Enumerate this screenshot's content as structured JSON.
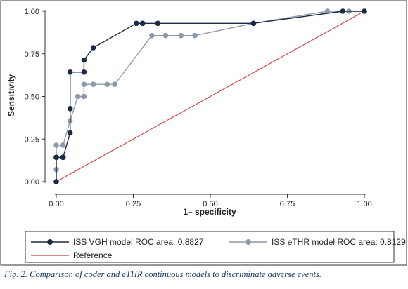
{
  "chart_data": {
    "type": "line",
    "xlabel": "1– specificity",
    "ylabel": "Sensitivity",
    "xlim": [
      0,
      1
    ],
    "ylim": [
      0,
      1
    ],
    "xticks": [
      "0.00",
      "0.25",
      "0.50",
      "0.75",
      "1.00"
    ],
    "yticks": [
      "0.00",
      "0.25",
      "0.50",
      "0.75",
      "1.00"
    ],
    "grid": false,
    "legend_position": "bottom",
    "series": [
      {
        "name": "ISS VGH model ROC area: 0.8827",
        "color": "#1c2b45",
        "marker": "circle",
        "x": [
          0,
          0,
          0.022,
          0.022,
          0.045,
          0.045,
          0.045,
          0.09,
          0.09,
          0.12,
          0.26,
          0.28,
          0.33,
          0.64,
          0.93,
          1.0
        ],
        "y": [
          0,
          0.143,
          0.143,
          0.143,
          0.286,
          0.429,
          0.643,
          0.643,
          0.714,
          0.786,
          0.929,
          0.929,
          0.929,
          0.929,
          1.0,
          1.0
        ]
      },
      {
        "name": "ISS eTHR model ROC area: 0.8129",
        "color": "#8e9aab",
        "marker": "circle",
        "x": [
          0,
          0,
          0,
          0,
          0.022,
          0.045,
          0.07,
          0.09,
          0.09,
          0.12,
          0.165,
          0.19,
          0.31,
          0.355,
          0.405,
          0.45,
          0.64,
          0.88,
          0.95,
          1.0
        ],
        "y": [
          0,
          0.071,
          0.143,
          0.214,
          0.214,
          0.357,
          0.5,
          0.5,
          0.571,
          0.571,
          0.571,
          0.571,
          0.857,
          0.857,
          0.857,
          0.857,
          0.929,
          1.0,
          1.0,
          1.0
        ]
      },
      {
        "name": "Reference",
        "color": "#d43c3c",
        "marker": "none",
        "x": [
          0,
          1
        ],
        "y": [
          0,
          1
        ]
      }
    ]
  },
  "caption": "Fig. 2. Comparison of coder and eTHR continuous models to discriminate adverse events."
}
